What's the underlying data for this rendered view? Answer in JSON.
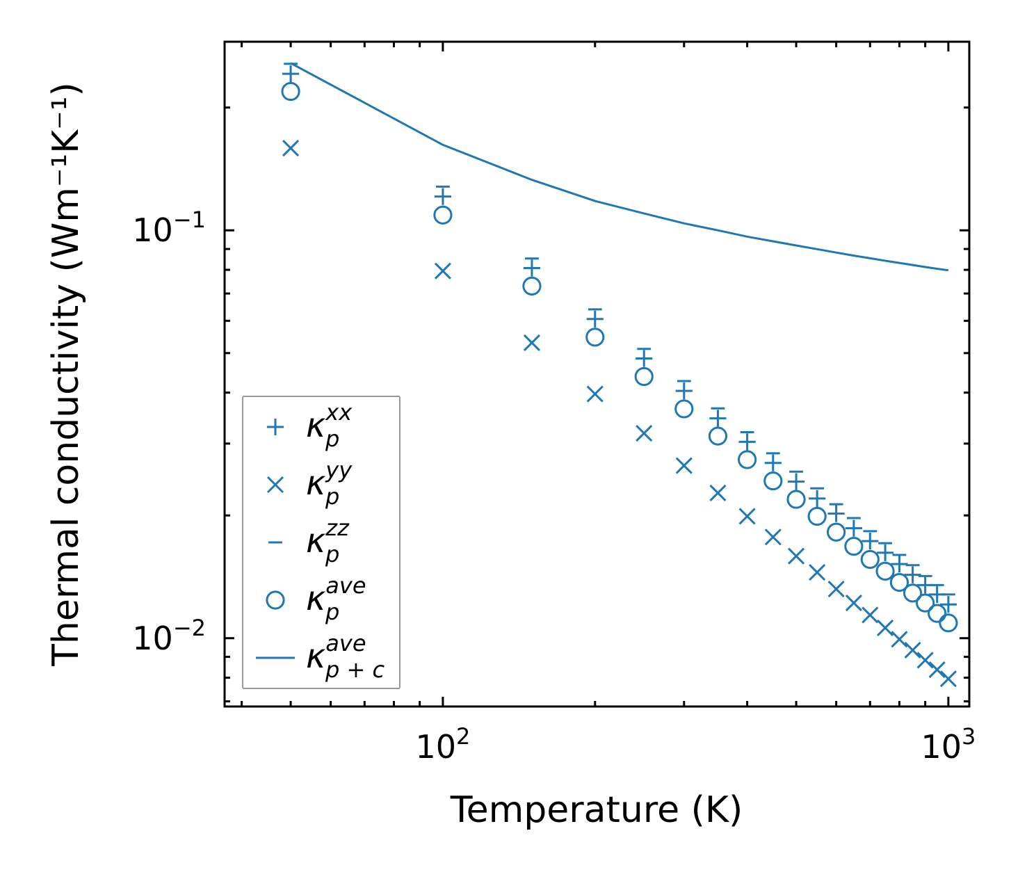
{
  "chart_data": {
    "type": "scatter",
    "title": "",
    "xlabel": "Temperature (K)",
    "ylabel": "Thermal conductivity (Wm⁻¹K⁻¹)",
    "xscale": "log",
    "yscale": "log",
    "xlim": [
      37,
      1100
    ],
    "ylim": [
      0.0068,
      0.29
    ],
    "x_ticks": [
      {
        "value": 100,
        "base": "10",
        "exp": "2"
      },
      {
        "value": 1000,
        "base": "10",
        "exp": "3"
      }
    ],
    "y_ticks": [
      {
        "value": 0.1,
        "base": "10",
        "exp": "−1"
      },
      {
        "value": 0.01,
        "base": "10",
        "exp": "−2"
      }
    ],
    "color": "#1f77b4",
    "legend_position": "lower-left",
    "x": [
      50,
      100,
      150,
      200,
      250,
      300,
      350,
      400,
      450,
      500,
      550,
      600,
      650,
      700,
      750,
      800,
      850,
      900,
      950,
      1000
    ],
    "series": [
      {
        "name": "kxx",
        "label": "κ",
        "sub": "p",
        "sup": "xx",
        "marker": "plus",
        "values": [
          0.242,
          0.121,
          0.0808,
          0.0606,
          0.0485,
          0.0404,
          0.0346,
          0.0303,
          0.0269,
          0.0242,
          0.022,
          0.0202,
          0.0186,
          0.0173,
          0.0162,
          0.0152,
          0.0143,
          0.0135,
          0.0128,
          0.0121
        ]
      },
      {
        "name": "kyy",
        "label": "κ",
        "sub": "p",
        "sup": "yy",
        "marker": "x",
        "values": [
          0.159,
          0.0795,
          0.053,
          0.0397,
          0.0318,
          0.0265,
          0.0227,
          0.0199,
          0.0177,
          0.0159,
          0.0145,
          0.0132,
          0.0122,
          0.0114,
          0.0106,
          0.00994,
          0.00935,
          0.00883,
          0.00837,
          0.00795
        ]
      },
      {
        "name": "kzz",
        "label": "κ",
        "sub": "p",
        "sup": "zz",
        "marker": "hline",
        "values": [
          0.256,
          0.128,
          0.0853,
          0.064,
          0.0512,
          0.0427,
          0.0366,
          0.032,
          0.0284,
          0.0256,
          0.0233,
          0.0213,
          0.0197,
          0.0183,
          0.0171,
          0.016,
          0.0151,
          0.0142,
          0.0135,
          0.0128
        ]
      },
      {
        "name": "kave",
        "label": "κ",
        "sub": "p",
        "sup": "ave",
        "marker": "circle",
        "values": [
          0.219,
          0.109,
          0.073,
          0.0547,
          0.0438,
          0.0365,
          0.0313,
          0.0274,
          0.0243,
          0.0219,
          0.0199,
          0.0182,
          0.0168,
          0.0156,
          0.0146,
          0.0137,
          0.0129,
          0.0122,
          0.0115,
          0.0109
        ]
      },
      {
        "name": "kave_pc",
        "label": "κ",
        "sub": "p + c",
        "sup": "ave",
        "marker": "line",
        "values": [
          0.257,
          0.162,
          0.133,
          0.118,
          0.11,
          0.104,
          0.1,
          0.0965,
          0.094,
          0.0918,
          0.0899,
          0.0882,
          0.0867,
          0.0854,
          0.0842,
          0.0832,
          0.0822,
          0.0813,
          0.0805,
          0.0798
        ]
      }
    ]
  }
}
